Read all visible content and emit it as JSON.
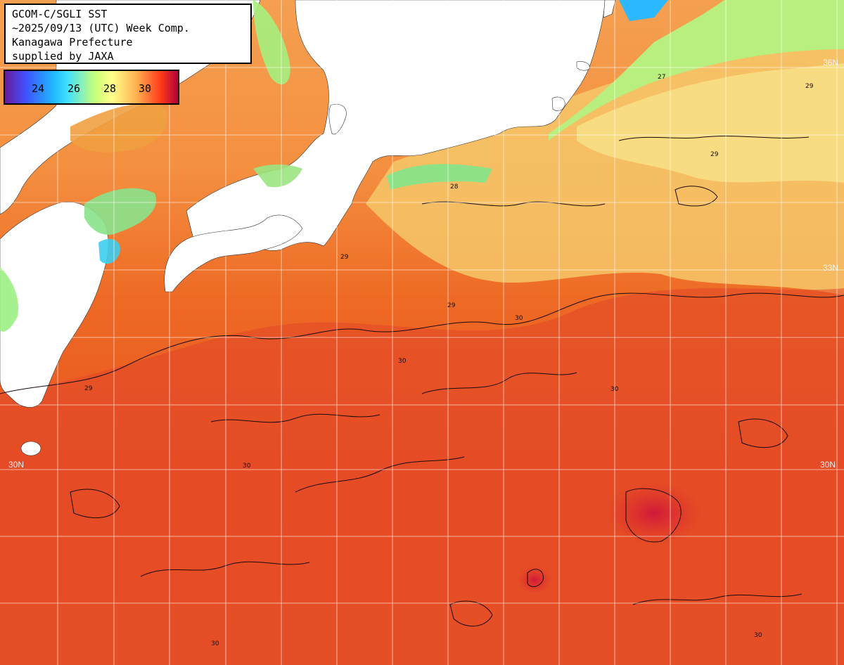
{
  "title_lines": [
    "GCOM-C/SGLI SST",
    "~2025/09/13 (UTC) Week Comp.",
    "Kanagawa Prefecture",
    "supplied by JAXA"
  ],
  "legend": {
    "ticks": [
      "24",
      "26",
      "28",
      "30"
    ],
    "colors": [
      "#6a1b9a",
      "#3f51ff",
      "#1fb8ff",
      "#c8ff7a",
      "#ffff8a",
      "#ffb050",
      "#ff3b1a",
      "#b0003a"
    ]
  },
  "lat_labels": {
    "n36_right": "36N",
    "n33_right": "33N",
    "n30_left": "30N",
    "n30_right": "30N"
  },
  "contour_labels": [
    "27",
    "28",
    "29",
    "29",
    "29",
    "30",
    "30",
    "30",
    "29",
    "29",
    "30",
    "30",
    "30"
  ]
}
